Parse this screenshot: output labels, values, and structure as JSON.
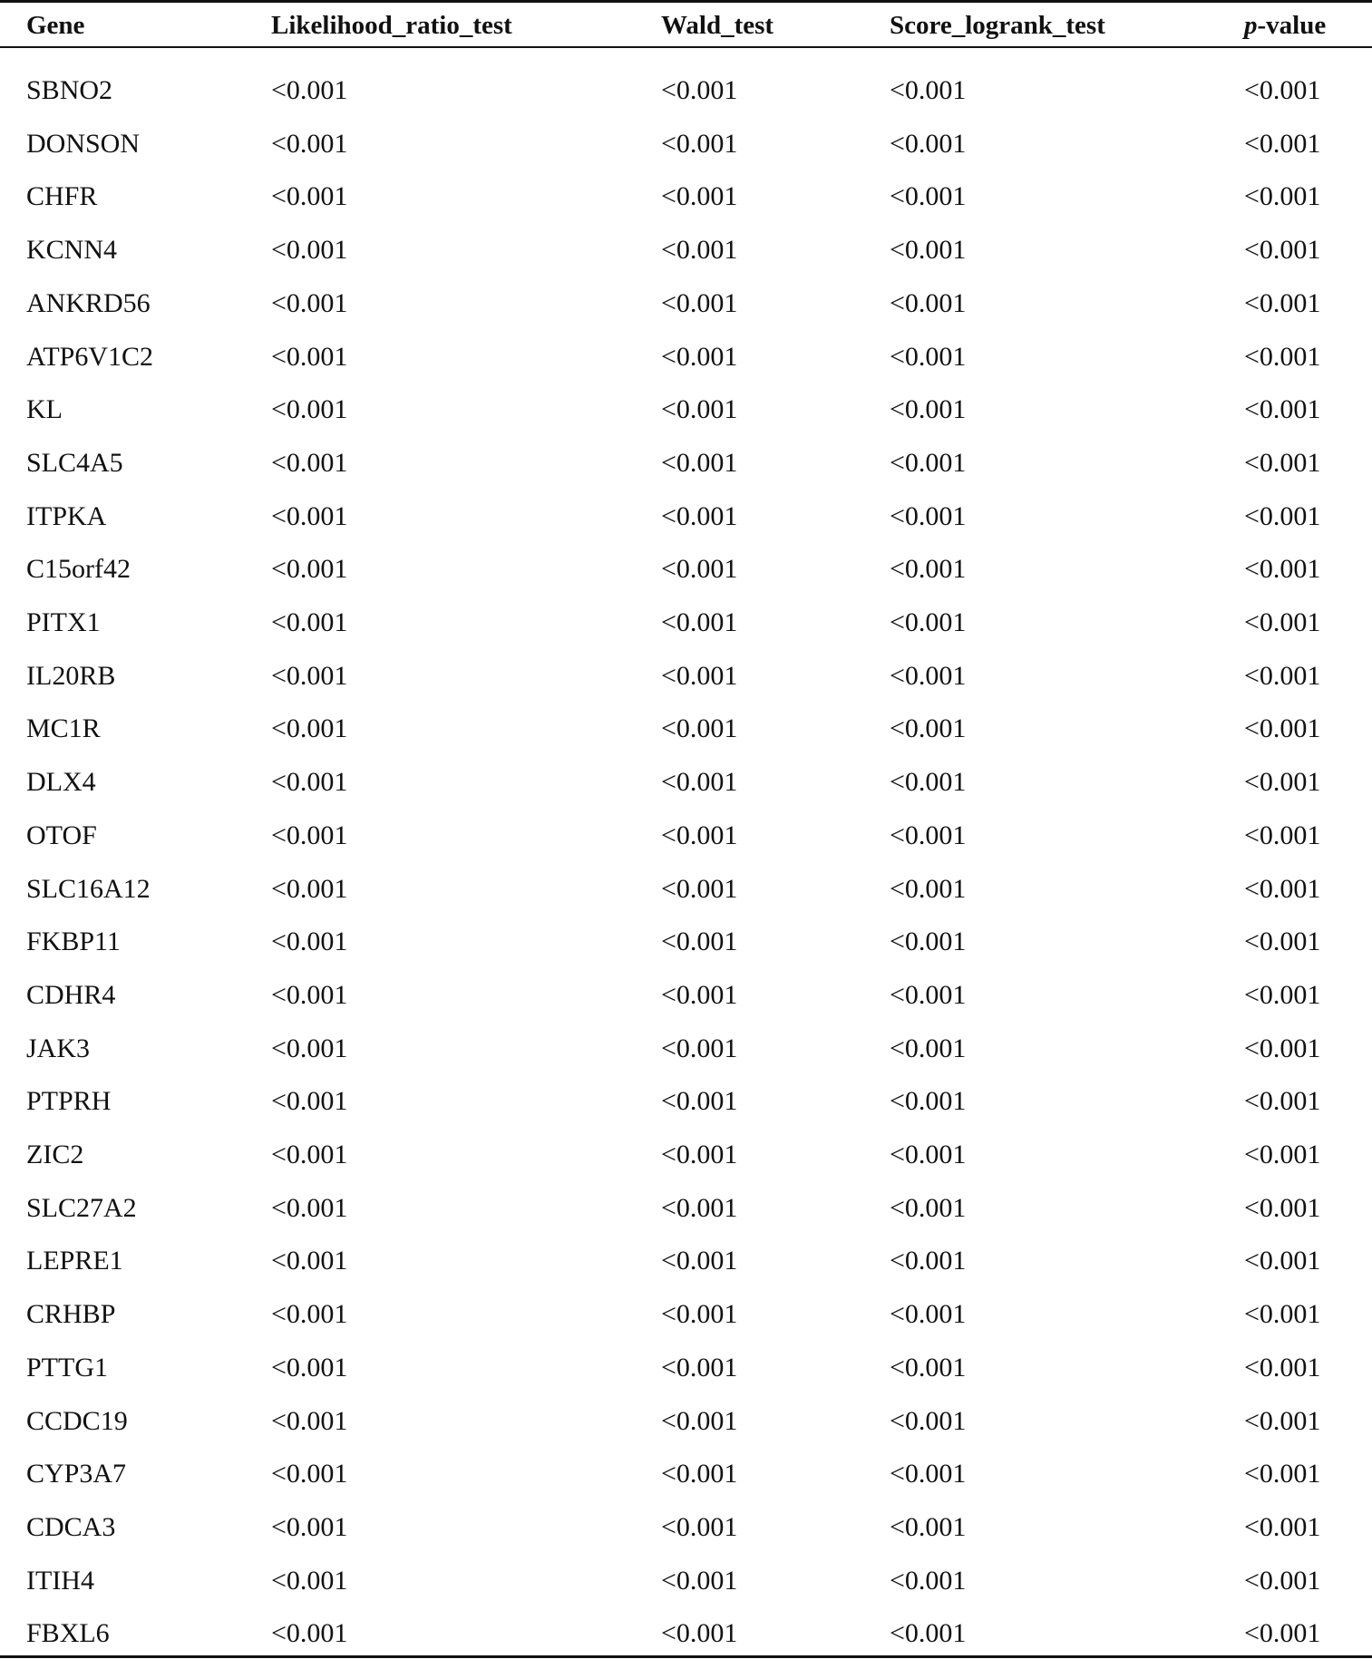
{
  "table": {
    "headers": [
      "Gene",
      "Likelihood_ratio_test",
      "Wald_test",
      "Score_logrank_test",
      "p-value"
    ],
    "p_header": {
      "italic": "p",
      "rest": "-value"
    },
    "rows": [
      [
        "SBNO2",
        "<0.001",
        "<0.001",
        "<0.001",
        "<0.001"
      ],
      [
        "DONSON",
        "<0.001",
        "<0.001",
        "<0.001",
        "<0.001"
      ],
      [
        "CHFR",
        "<0.001",
        "<0.001",
        "<0.001",
        "<0.001"
      ],
      [
        "KCNN4",
        "<0.001",
        "<0.001",
        "<0.001",
        "<0.001"
      ],
      [
        "ANKRD56",
        "<0.001",
        "<0.001",
        "<0.001",
        "<0.001"
      ],
      [
        "ATP6V1C2",
        "<0.001",
        "<0.001",
        "<0.001",
        "<0.001"
      ],
      [
        "KL",
        "<0.001",
        "<0.001",
        "<0.001",
        "<0.001"
      ],
      [
        "SLC4A5",
        "<0.001",
        "<0.001",
        "<0.001",
        "<0.001"
      ],
      [
        "ITPKA",
        "<0.001",
        "<0.001",
        "<0.001",
        "<0.001"
      ],
      [
        "C15orf42",
        "<0.001",
        "<0.001",
        "<0.001",
        "<0.001"
      ],
      [
        "PITX1",
        "<0.001",
        "<0.001",
        "<0.001",
        "<0.001"
      ],
      [
        "IL20RB",
        "<0.001",
        "<0.001",
        "<0.001",
        "<0.001"
      ],
      [
        "MC1R",
        "<0.001",
        "<0.001",
        "<0.001",
        "<0.001"
      ],
      [
        "DLX4",
        "<0.001",
        "<0.001",
        "<0.001",
        "<0.001"
      ],
      [
        "OTOF",
        "<0.001",
        "<0.001",
        "<0.001",
        "<0.001"
      ],
      [
        "SLC16A12",
        "<0.001",
        "<0.001",
        "<0.001",
        "<0.001"
      ],
      [
        "FKBP11",
        "<0.001",
        "<0.001",
        "<0.001",
        "<0.001"
      ],
      [
        "CDHR4",
        "<0.001",
        "<0.001",
        "<0.001",
        "<0.001"
      ],
      [
        "JAK3",
        "<0.001",
        "<0.001",
        "<0.001",
        "<0.001"
      ],
      [
        "PTPRH",
        "<0.001",
        "<0.001",
        "<0.001",
        "<0.001"
      ],
      [
        "ZIC2",
        "<0.001",
        "<0.001",
        "<0.001",
        "<0.001"
      ],
      [
        "SLC27A2",
        "<0.001",
        "<0.001",
        "<0.001",
        "<0.001"
      ],
      [
        "LEPRE1",
        "<0.001",
        "<0.001",
        "<0.001",
        "<0.001"
      ],
      [
        "CRHBP",
        "<0.001",
        "<0.001",
        "<0.001",
        "<0.001"
      ],
      [
        "PTTG1",
        "<0.001",
        "<0.001",
        "<0.001",
        "<0.001"
      ],
      [
        "CCDC19",
        "<0.001",
        "<0.001",
        "<0.001",
        "<0.001"
      ],
      [
        "CYP3A7",
        "<0.001",
        "<0.001",
        "<0.001",
        "<0.001"
      ],
      [
        "CDCA3",
        "<0.001",
        "<0.001",
        "<0.001",
        "<0.001"
      ],
      [
        "ITIH4",
        "<0.001",
        "<0.001",
        "<0.001",
        "<0.001"
      ],
      [
        "FBXL6",
        "<0.001",
        "<0.001",
        "<0.001",
        "<0.001"
      ]
    ]
  }
}
